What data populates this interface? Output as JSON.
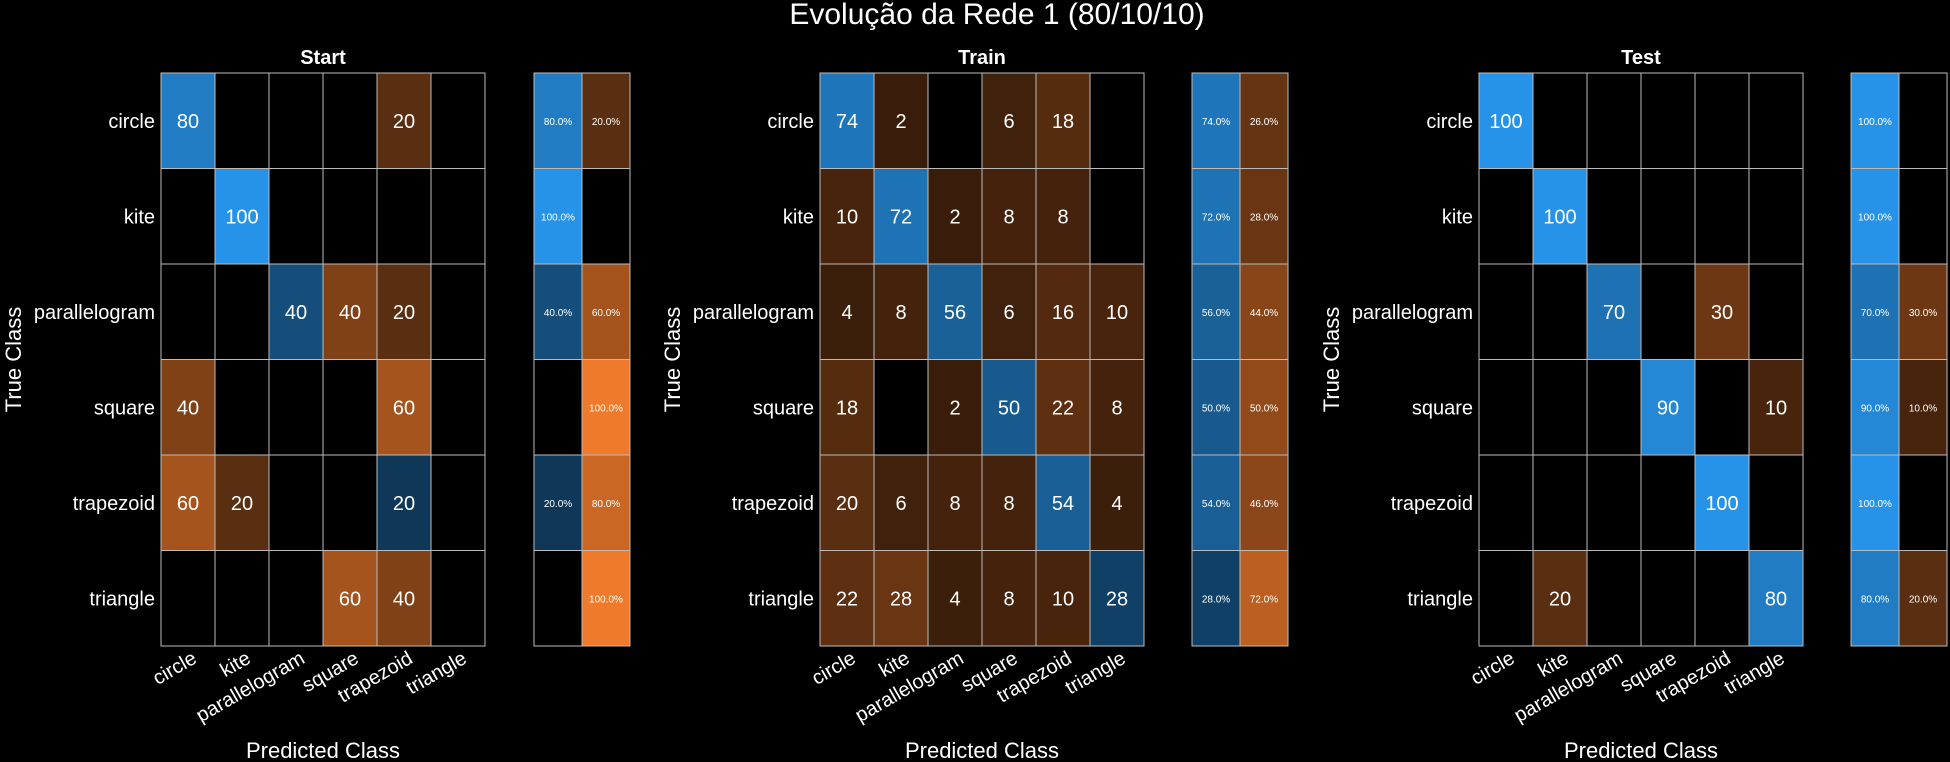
{
  "figure": {
    "title": "Evolução da Rede 1 (80/10/10)"
  },
  "colors": {
    "background": "#000000",
    "grid": "#bbbbbb",
    "correct": "#2793e8",
    "incorrect": "#f07a2b"
  },
  "chart_data": [
    {
      "type": "heatmap",
      "title": "Start",
      "xlabel": "Predicted Class",
      "ylabel": "True Class",
      "classes": [
        "circle",
        "kite",
        "parallelogram",
        "square",
        "trapezoid",
        "triangle"
      ],
      "matrix": [
        [
          80,
          0,
          0,
          0,
          20,
          0
        ],
        [
          0,
          100,
          0,
          0,
          0,
          0
        ],
        [
          0,
          0,
          40,
          40,
          20,
          0
        ],
        [
          40,
          0,
          0,
          0,
          60,
          0
        ],
        [
          60,
          20,
          0,
          0,
          20,
          0
        ],
        [
          0,
          0,
          0,
          60,
          40,
          0
        ]
      ],
      "row_summary": [
        [
          "80.0%",
          "20.0%"
        ],
        [
          "100.0%",
          ""
        ],
        [
          "40.0%",
          "60.0%"
        ],
        [
          "",
          "100.0%"
        ],
        [
          "20.0%",
          "80.0%"
        ],
        [
          "",
          "100.0%"
        ]
      ]
    },
    {
      "type": "heatmap",
      "title": "Train",
      "xlabel": "Predicted Class",
      "ylabel": "True Class",
      "classes": [
        "circle",
        "kite",
        "parallelogram",
        "square",
        "trapezoid",
        "triangle"
      ],
      "matrix": [
        [
          74,
          2,
          0,
          6,
          18,
          0
        ],
        [
          10,
          72,
          2,
          8,
          8,
          0
        ],
        [
          4,
          8,
          56,
          6,
          16,
          10
        ],
        [
          18,
          0,
          2,
          50,
          22,
          8
        ],
        [
          20,
          6,
          8,
          8,
          54,
          4
        ],
        [
          22,
          28,
          4,
          8,
          10,
          28
        ]
      ],
      "row_summary": [
        [
          "74.0%",
          "26.0%"
        ],
        [
          "72.0%",
          "28.0%"
        ],
        [
          "56.0%",
          "44.0%"
        ],
        [
          "50.0%",
          "50.0%"
        ],
        [
          "54.0%",
          "46.0%"
        ],
        [
          "28.0%",
          "72.0%"
        ]
      ]
    },
    {
      "type": "heatmap",
      "title": "Test",
      "xlabel": "Predicted Class",
      "ylabel": "True Class",
      "classes": [
        "circle",
        "kite",
        "parallelogram",
        "square",
        "trapezoid",
        "triangle"
      ],
      "matrix": [
        [
          100,
          0,
          0,
          0,
          0,
          0
        ],
        [
          0,
          100,
          0,
          0,
          0,
          0
        ],
        [
          0,
          0,
          70,
          0,
          30,
          0
        ],
        [
          0,
          0,
          0,
          90,
          0,
          10
        ],
        [
          0,
          0,
          0,
          0,
          100,
          0
        ],
        [
          0,
          20,
          0,
          0,
          0,
          80
        ]
      ],
      "row_summary": [
        [
          "100.0%",
          ""
        ],
        [
          "100.0%",
          ""
        ],
        [
          "70.0%",
          "30.0%"
        ],
        [
          "90.0%",
          "10.0%"
        ],
        [
          "100.0%",
          ""
        ],
        [
          "80.0%",
          "20.0%"
        ]
      ]
    }
  ]
}
